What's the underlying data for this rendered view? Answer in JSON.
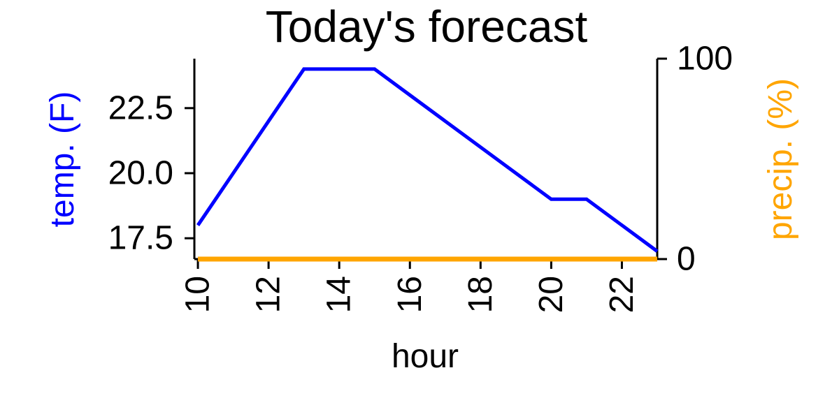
{
  "chart_data": {
    "type": "line",
    "title": "Today's forecast",
    "xlabel": "hour",
    "ylabel_left": "temp. (F)",
    "ylabel_right": "precip. (%)",
    "x": [
      10,
      11,
      12,
      13,
      14,
      15,
      16,
      17,
      18,
      19,
      20,
      21,
      22,
      23
    ],
    "xlim": [
      9.9,
      23
    ],
    "xticks": [
      "10",
      "12",
      "14",
      "16",
      "18",
      "20",
      "22"
    ],
    "ylim_left": [
      16.7,
      24.4
    ],
    "yticks_left": [
      "17.5",
      "20.0",
      "22.5"
    ],
    "ylim_right": [
      0,
      100
    ],
    "yticks_right": [
      "0",
      "100"
    ],
    "series": [
      {
        "axis": "left",
        "color": "#0000ff",
        "values": [
          18,
          20,
          22,
          24,
          24,
          24,
          23,
          22,
          21,
          20,
          19,
          19,
          18,
          17
        ]
      },
      {
        "axis": "right",
        "color": "#ffa500",
        "values": [
          0,
          0,
          0,
          0,
          0,
          0,
          0,
          0,
          0,
          0,
          0,
          0,
          0,
          0
        ]
      }
    ],
    "colors": {
      "temp": "#0000ff",
      "precip": "#ffa500",
      "axis": "#000000"
    }
  }
}
